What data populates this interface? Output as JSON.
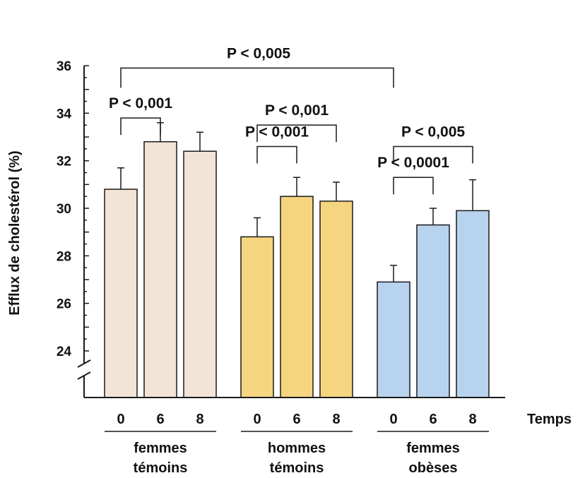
{
  "chart_data": {
    "type": "bar",
    "ylabel": "Efflux de cholestérol (%)",
    "xlabel": "Temps",
    "ylim": [
      22.5,
      36
    ],
    "y_ticks": [
      24,
      26,
      28,
      30,
      32,
      34,
      36
    ],
    "axis_break": true,
    "grid": false,
    "groups": [
      {
        "label_lines": [
          "femmes",
          "témoins"
        ],
        "color": "#f3e4d8",
        "bars": [
          {
            "time": "0",
            "value": 30.8,
            "error": 0.9
          },
          {
            "time": "6",
            "value": 32.8,
            "error": 0.8
          },
          {
            "time": "8",
            "value": 32.4,
            "error": 0.8
          }
        ]
      },
      {
        "label_lines": [
          "hommes",
          "témoins"
        ],
        "color": "#f5d57f",
        "bars": [
          {
            "time": "0",
            "value": 28.8,
            "error": 0.8
          },
          {
            "time": "6",
            "value": 30.5,
            "error": 0.8
          },
          {
            "time": "8",
            "value": 30.3,
            "error": 0.8
          }
        ]
      },
      {
        "label_lines": [
          "femmes",
          "obèses"
        ],
        "color": "#b7d3ee",
        "bars": [
          {
            "time": "0",
            "value": 26.9,
            "error": 0.7
          },
          {
            "time": "6",
            "value": 29.3,
            "error": 0.7
          },
          {
            "time": "8",
            "value": 29.9,
            "error": 1.3
          }
        ]
      }
    ],
    "annotations": [
      {
        "text": "P < 0,005",
        "from": [
          0,
          0
        ],
        "to": [
          2,
          0
        ],
        "level": 35.9
      },
      {
        "text": "P < 0,001",
        "from": [
          0,
          0
        ],
        "to": [
          0,
          1
        ],
        "level": 33.8
      },
      {
        "text": "P < 0,001",
        "from": [
          1,
          0
        ],
        "to": [
          1,
          2
        ],
        "level": 33.5
      },
      {
        "text": "P < 0,001",
        "from": [
          1,
          0
        ],
        "to": [
          1,
          1
        ],
        "level": 32.6
      },
      {
        "text": "P < 0,005",
        "from": [
          2,
          0
        ],
        "to": [
          2,
          2
        ],
        "level": 32.6
      },
      {
        "text": "P < 0,0001",
        "from": [
          2,
          0
        ],
        "to": [
          2,
          1
        ],
        "level": 31.3
      }
    ]
  }
}
